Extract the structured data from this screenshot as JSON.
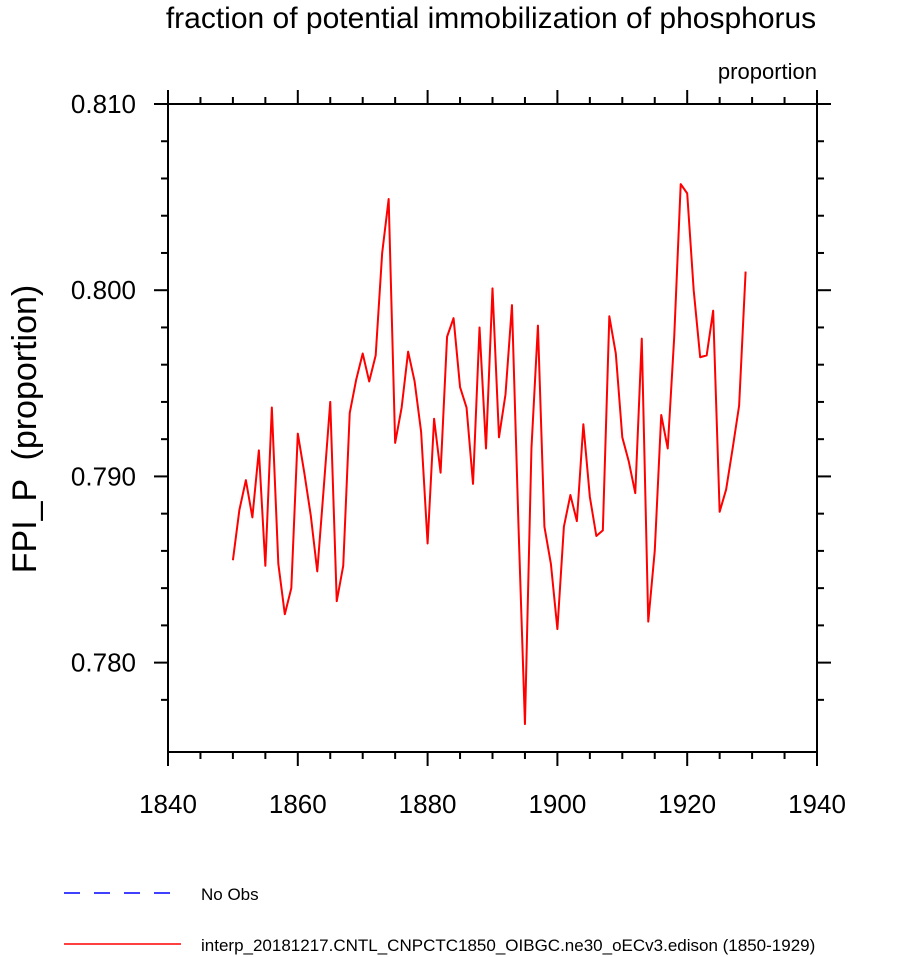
{
  "chart_data": {
    "type": "line",
    "title": "fraction of potential immobilization of phosphorus",
    "units_label": "proportion",
    "ylabel": "FPI_P  (proportion)",
    "xlabel": "",
    "xlim": [
      1840,
      1940
    ],
    "ylim": [
      0.7752,
      0.81
    ],
    "x_ticks": [
      1840,
      1860,
      1880,
      1900,
      1920,
      1940
    ],
    "x_tick_labels": [
      "1840",
      "1860",
      "1880",
      "1900",
      "1920",
      "1940"
    ],
    "y_ticks": [
      0.78,
      0.79,
      0.8,
      0.81
    ],
    "y_tick_labels": [
      "0.780",
      "0.790",
      "0.800",
      "0.810"
    ],
    "series": [
      {
        "name": "interp_20181217.CNTL_CNPCTC1850_OIBGC.ne30_oECv3.edison (1850-1929)",
        "color": "#ff0000",
        "dash": "solid",
        "x": [
          1850,
          1851,
          1852,
          1853,
          1854,
          1855,
          1856,
          1857,
          1858,
          1859,
          1860,
          1861,
          1862,
          1863,
          1864,
          1865,
          1866,
          1867,
          1868,
          1869,
          1870,
          1871,
          1872,
          1873,
          1874,
          1875,
          1876,
          1877,
          1878,
          1879,
          1880,
          1881,
          1882,
          1883,
          1884,
          1885,
          1886,
          1887,
          1888,
          1889,
          1890,
          1891,
          1892,
          1893,
          1894,
          1895,
          1896,
          1897,
          1898,
          1899,
          1900,
          1901,
          1902,
          1903,
          1904,
          1905,
          1906,
          1907,
          1908,
          1909,
          1910,
          1911,
          1912,
          1913,
          1914,
          1915,
          1916,
          1917,
          1918,
          1919,
          1920,
          1921,
          1922,
          1923,
          1924,
          1925,
          1926,
          1927,
          1928,
          1929
        ],
        "values": [
          0.7855,
          0.7882,
          0.7898,
          0.7878,
          0.7914,
          0.7852,
          0.7937,
          0.7853,
          0.7826,
          0.784,
          0.7923,
          0.7902,
          0.7879,
          0.7849,
          0.7894,
          0.794,
          0.7833,
          0.7852,
          0.7934,
          0.7952,
          0.7966,
          0.7951,
          0.7965,
          0.802,
          0.8049,
          0.7918,
          0.7937,
          0.7967,
          0.7951,
          0.7924,
          0.7864,
          0.7931,
          0.7902,
          0.7975,
          0.7985,
          0.7948,
          0.7937,
          0.7896,
          0.798,
          0.7915,
          0.8001,
          0.7921,
          0.7944,
          0.7992,
          0.7874,
          0.7767,
          0.7915,
          0.7981,
          0.7873,
          0.7853,
          0.7818,
          0.7873,
          0.789,
          0.7876,
          0.7928,
          0.7889,
          0.7868,
          0.7871,
          0.7986,
          0.7966,
          0.7921,
          0.7908,
          0.7891,
          0.7974,
          0.7822,
          0.786,
          0.7933,
          0.7915,
          0.7975,
          0.8057,
          0.8052,
          0.8,
          0.7964,
          0.7965,
          0.7989,
          0.7881,
          0.7893,
          0.7915,
          0.7938,
          0.801
        ]
      },
      {
        "name": "No Obs",
        "color": "#0000ff",
        "dash": "dashed",
        "x": [],
        "values": []
      }
    ],
    "legend": {
      "placement": "bottom-left",
      "entries": [
        {
          "label": "No Obs",
          "color": "#0000ff",
          "dash": "dashed"
        },
        {
          "label": "interp_20181217.CNTL_CNPCTC1850_OIBGC.ne30_oECv3.edison (1850-1929)",
          "color": "#ff0000",
          "dash": "solid"
        }
      ]
    }
  }
}
